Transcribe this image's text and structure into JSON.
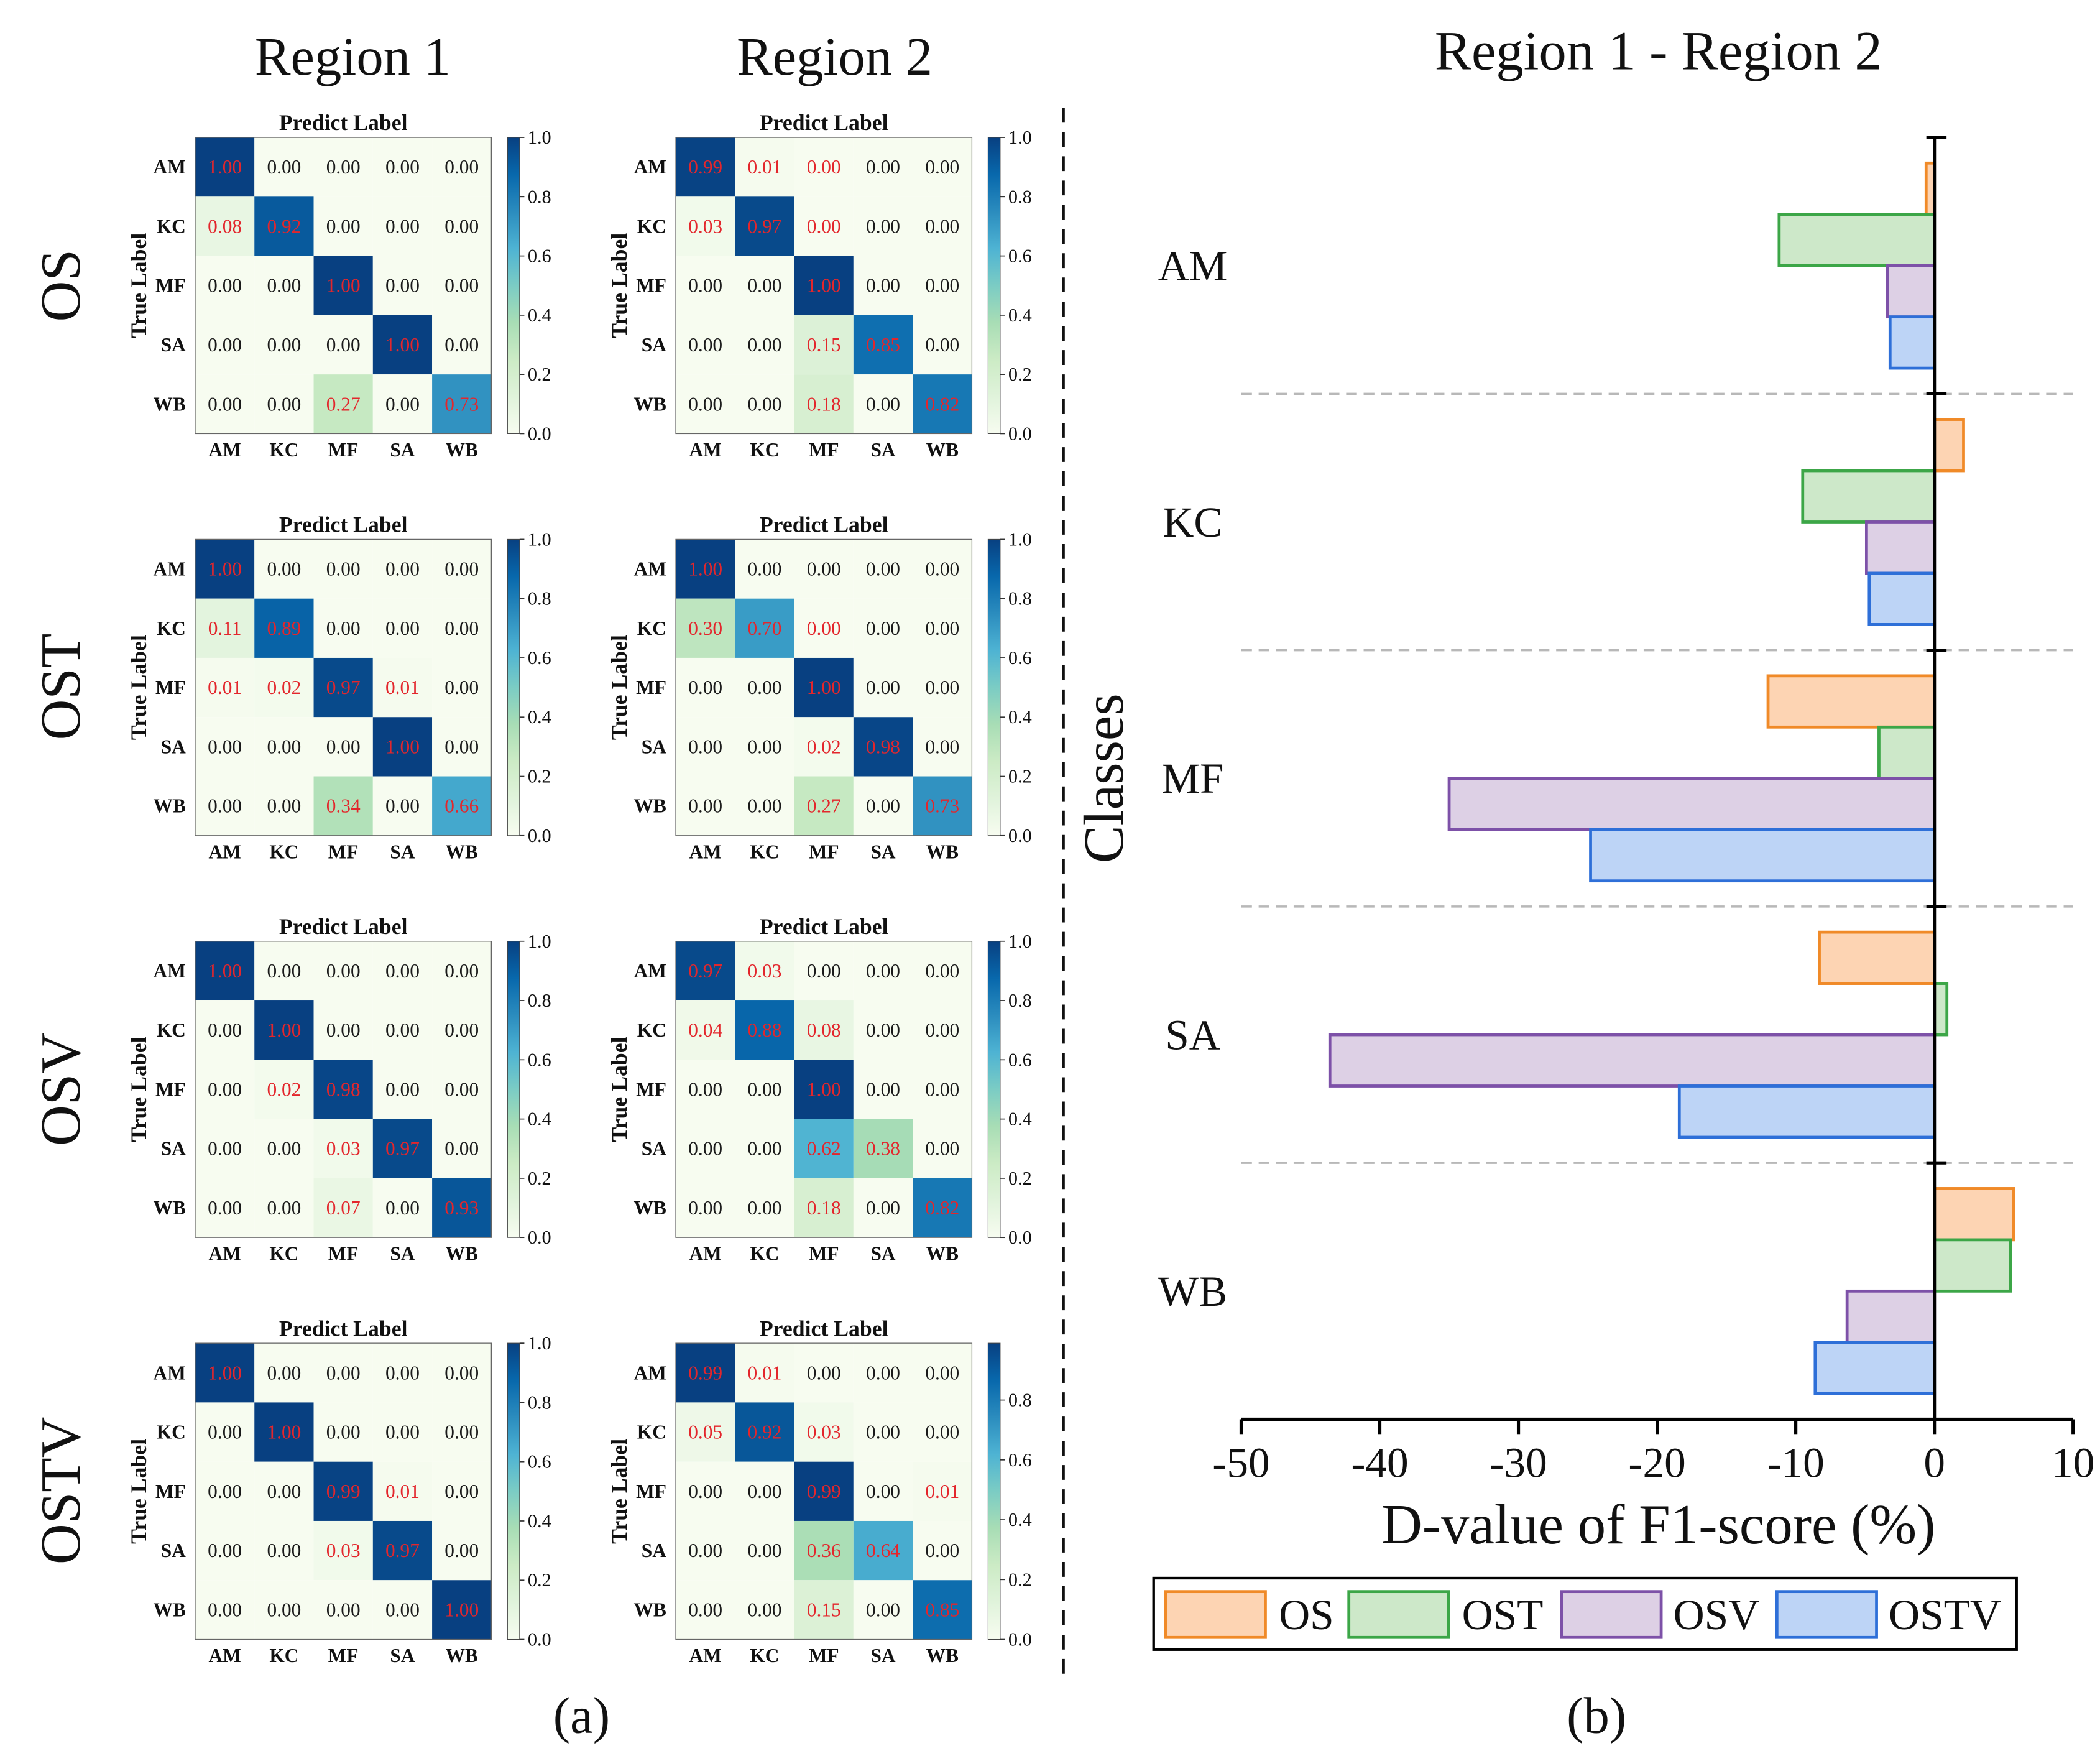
{
  "chart_data": [
    {
      "type": "heatmap",
      "panel_label": "(a)",
      "column_titles": [
        "Region 1",
        "Region 2"
      ],
      "row_titles": [
        "OS",
        "OST",
        "OSV",
        "OSTV"
      ],
      "xlabel": "Predict Label",
      "ylabel": "True Label",
      "classes": [
        "AM",
        "KC",
        "MF",
        "SA",
        "WB"
      ],
      "matrices": [
        [
          {
            "values": [
              [
                1.0,
                0,
                0,
                0,
                0
              ],
              [
                0.08,
                0.92,
                0,
                0,
                0
              ],
              [
                0,
                0,
                1.0,
                0,
                0
              ],
              [
                0,
                0,
                0,
                1.0,
                0
              ],
              [
                0,
                0,
                0.27,
                0,
                0.73
              ]
            ],
            "colorbar_range": [
              0,
              1.0
            ],
            "colorbar_ticks": [
              0,
              0.2,
              0.4,
              0.6,
              0.8,
              1.0
            ]
          },
          {
            "values": [
              [
                0.99,
                0.01,
                0,
                0,
                0
              ],
              [
                0.03,
                0.97,
                0,
                0,
                0
              ],
              [
                0,
                0,
                1.0,
                0,
                0
              ],
              [
                0,
                0,
                0.15,
                0.85,
                0
              ],
              [
                0,
                0,
                0.18,
                0,
                0.82
              ]
            ],
            "nonzero_rounded_to_zero": [
              [
                0,
                2
              ],
              [
                1,
                2
              ]
            ],
            "colorbar_range": [
              0,
              1.0
            ],
            "colorbar_ticks": [
              0,
              0.2,
              0.4,
              0.6,
              0.8,
              1.0
            ]
          }
        ],
        [
          {
            "values": [
              [
                1.0,
                0,
                0,
                0,
                0
              ],
              [
                0.11,
                0.89,
                0,
                0,
                0
              ],
              [
                0.01,
                0.02,
                0.97,
                0.01,
                0
              ],
              [
                0,
                0,
                0,
                1.0,
                0
              ],
              [
                0,
                0,
                0.34,
                0,
                0.66
              ]
            ],
            "colorbar_range": [
              0,
              1.0
            ],
            "colorbar_ticks": [
              0,
              0.2,
              0.4,
              0.6,
              0.8,
              1.0
            ]
          },
          {
            "values": [
              [
                1.0,
                0,
                0,
                0,
                0
              ],
              [
                0.3,
                0.7,
                0,
                0,
                0
              ],
              [
                0,
                0,
                1.0,
                0,
                0
              ],
              [
                0,
                0,
                0.02,
                0.98,
                0
              ],
              [
                0,
                0,
                0.27,
                0,
                0.73
              ]
            ],
            "nonzero_rounded_to_zero": [
              [
                1,
                2
              ]
            ],
            "colorbar_range": [
              0,
              1.0
            ],
            "colorbar_ticks": [
              0,
              0.2,
              0.4,
              0.6,
              0.8,
              1.0
            ]
          }
        ],
        [
          {
            "values": [
              [
                1.0,
                0,
                0,
                0,
                0
              ],
              [
                0,
                1.0,
                0,
                0,
                0
              ],
              [
                0,
                0.02,
                0.98,
                0,
                0
              ],
              [
                0,
                0,
                0.03,
                0.97,
                0
              ],
              [
                0,
                0,
                0.07,
                0,
                0.93
              ]
            ],
            "colorbar_range": [
              0,
              1.0
            ],
            "colorbar_ticks": [
              0,
              0.2,
              0.4,
              0.6,
              0.8,
              1.0
            ]
          },
          {
            "values": [
              [
                0.97,
                0.03,
                0,
                0,
                0
              ],
              [
                0.04,
                0.88,
                0.08,
                0,
                0
              ],
              [
                0,
                0,
                1.0,
                0,
                0
              ],
              [
                0,
                0,
                0.62,
                0.38,
                0
              ],
              [
                0,
                0,
                0.18,
                0,
                0.82
              ]
            ],
            "colorbar_range": [
              0,
              1.0
            ],
            "colorbar_ticks": [
              0,
              0.2,
              0.4,
              0.6,
              0.8,
              1.0
            ]
          }
        ],
        [
          {
            "values": [
              [
                1.0,
                0,
                0,
                0,
                0
              ],
              [
                0,
                1.0,
                0,
                0,
                0
              ],
              [
                0,
                0,
                0.99,
                0.01,
                0
              ],
              [
                0,
                0,
                0.03,
                0.97,
                0
              ],
              [
                0,
                0,
                0,
                0,
                1.0
              ]
            ],
            "colorbar_range": [
              0,
              1.0
            ],
            "colorbar_ticks": [
              0,
              0.2,
              0.4,
              0.6,
              0.8,
              1.0
            ]
          },
          {
            "values": [
              [
                0.99,
                0.01,
                0,
                0,
                0
              ],
              [
                0.05,
                0.92,
                0.03,
                0,
                0
              ],
              [
                0,
                0,
                0.99,
                0,
                0.01
              ],
              [
                0,
                0,
                0.36,
                0.64,
                0
              ],
              [
                0,
                0,
                0.15,
                0,
                0.85
              ]
            ],
            "colorbar_range": [
              0,
              0.99
            ],
            "colorbar_ticks": [
              0,
              0.2,
              0.4,
              0.6,
              0.8
            ]
          }
        ]
      ]
    },
    {
      "type": "bar",
      "panel_label": "(b)",
      "title": "Region 1 - Region 2",
      "xlabel": "D-value of F1-score (%)",
      "ylabel": "Classes",
      "categories": [
        "AM",
        "KC",
        "MF",
        "SA",
        "WB"
      ],
      "xlim": [
        -50,
        10
      ],
      "xticks": [
        -50,
        -40,
        -30,
        -20,
        -10,
        0,
        10
      ],
      "legend_position": "bottom",
      "series": [
        {
          "name": "OS",
          "values": [
            -0.6,
            2.1,
            -12.0,
            -8.3,
            5.7
          ],
          "fill_color": "#fdd4b3",
          "edge_color": "#f08a28"
        },
        {
          "name": "OST",
          "values": [
            -11.2,
            -9.5,
            -4.0,
            0.9,
            5.5
          ],
          "fill_color": "#cde8c9",
          "edge_color": "#3ca647"
        },
        {
          "name": "OSV",
          "values": [
            -3.4,
            -4.9,
            -35.0,
            -43.6,
            -6.3
          ],
          "fill_color": "#ddd0e5",
          "edge_color": "#7d51a8"
        },
        {
          "name": "OSTV",
          "values": [
            -3.2,
            -4.7,
            -24.8,
            -18.4,
            -8.6
          ],
          "fill_color": "#bdd4f6",
          "edge_color": "#2e6fd8"
        }
      ]
    }
  ]
}
